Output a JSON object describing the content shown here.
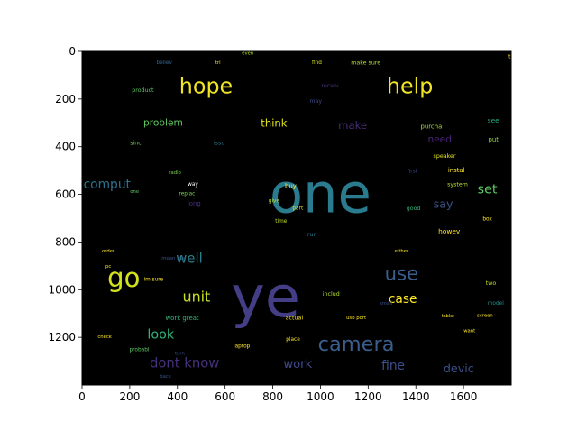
{
  "chart_data": {
    "type": "wordcloud",
    "background": "#000000",
    "xlim": [
      0,
      1800
    ],
    "ylim": [
      1400,
      0
    ],
    "x_ticks": [
      0,
      200,
      400,
      600,
      800,
      1000,
      1200,
      1400,
      1600
    ],
    "y_ticks": [
      0,
      200,
      400,
      600,
      800,
      1000,
      1200
    ],
    "x_tick_labels": [
      "0",
      "200",
      "400",
      "600",
      "800",
      "1000",
      "1200",
      "1400",
      "1600"
    ],
    "y_tick_labels": [
      "0",
      "200",
      "400",
      "600",
      "800",
      "1000",
      "1200"
    ],
    "words": [
      {
        "text": "one",
        "x": 1000,
        "y": 600,
        "size": 230,
        "color": "#2a7b8e"
      },
      {
        "text": "ye",
        "x": 770,
        "y": 1030,
        "size": 240,
        "color": "#433e85"
      },
      {
        "text": "hope",
        "x": 520,
        "y": 145,
        "size": 90,
        "color": "#f0e524"
      },
      {
        "text": "help",
        "x": 1375,
        "y": 145,
        "size": 90,
        "color": "#f0e524"
      },
      {
        "text": "camera",
        "x": 1150,
        "y": 1230,
        "size": 85,
        "color": "#3a5d8b"
      },
      {
        "text": "use",
        "x": 1340,
        "y": 930,
        "size": 80,
        "color": "#3a5d8b"
      },
      {
        "text": "dont know",
        "x": 430,
        "y": 1310,
        "size": 56,
        "color": "#46317e"
      },
      {
        "text": "fine",
        "x": 1305,
        "y": 1320,
        "size": 52,
        "color": "#3d4d8a"
      },
      {
        "text": "work",
        "x": 905,
        "y": 1315,
        "size": 50,
        "color": "#3e4a89"
      },
      {
        "text": "devic",
        "x": 1580,
        "y": 1330,
        "size": 48,
        "color": "#3b528b"
      },
      {
        "text": "unit",
        "x": 480,
        "y": 1030,
        "size": 60,
        "color": "#c8e020"
      },
      {
        "text": "case",
        "x": 1345,
        "y": 1040,
        "size": 52,
        "color": "#fde725"
      },
      {
        "text": "look",
        "x": 330,
        "y": 1190,
        "size": 54,
        "color": "#2eb37c"
      },
      {
        "text": "well",
        "x": 450,
        "y": 870,
        "size": 56,
        "color": "#26818e"
      },
      {
        "text": "go",
        "x": 175,
        "y": 950,
        "size": 110,
        "color": "#d2e21b"
      },
      {
        "text": "problem",
        "x": 340,
        "y": 300,
        "size": 40,
        "color": "#60ca60"
      },
      {
        "text": "think",
        "x": 805,
        "y": 300,
        "size": 44,
        "color": "#e2e418"
      },
      {
        "text": "make",
        "x": 1135,
        "y": 310,
        "size": 44,
        "color": "#472d7b"
      },
      {
        "text": "comput",
        "x": 105,
        "y": 560,
        "size": 52,
        "color": "#2c728e"
      },
      {
        "text": "say",
        "x": 1515,
        "y": 640,
        "size": 48,
        "color": "#3b528b"
      },
      {
        "text": "set",
        "x": 1700,
        "y": 580,
        "size": 54,
        "color": "#5ec962"
      },
      {
        "text": "need",
        "x": 1500,
        "y": 370,
        "size": 40,
        "color": "#482374"
      },
      {
        "text": "make sure",
        "x": 1190,
        "y": 50,
        "size": 24,
        "color": "#b5de2b"
      },
      {
        "text": "believ",
        "x": 345,
        "y": 50,
        "size": 22,
        "color": "#31688e"
      },
      {
        "text": "find",
        "x": 985,
        "y": 50,
        "size": 22,
        "color": "#d8e219"
      },
      {
        "text": "receiv",
        "x": 1040,
        "y": 145,
        "size": 24,
        "color": "#46327e"
      },
      {
        "text": "may",
        "x": 980,
        "y": 210,
        "size": 24,
        "color": "#3e4989"
      },
      {
        "text": "purcha",
        "x": 1465,
        "y": 315,
        "size": 26,
        "color": "#a2da37"
      },
      {
        "text": "see",
        "x": 1725,
        "y": 290,
        "size": 28,
        "color": "#29af7f"
      },
      {
        "text": "put",
        "x": 1725,
        "y": 370,
        "size": 26,
        "color": "#8fd744"
      },
      {
        "text": "speaker",
        "x": 1520,
        "y": 440,
        "size": 24,
        "color": "#e5e419"
      },
      {
        "text": "instal",
        "x": 1570,
        "y": 500,
        "size": 26,
        "color": "#fde725"
      },
      {
        "text": "system",
        "x": 1575,
        "y": 560,
        "size": 24,
        "color": "#b5de2b"
      },
      {
        "text": "good",
        "x": 1390,
        "y": 660,
        "size": 24,
        "color": "#35b779"
      },
      {
        "text": "howev",
        "x": 1540,
        "y": 755,
        "size": 28,
        "color": "#fde725"
      },
      {
        "text": "box",
        "x": 1700,
        "y": 705,
        "size": 22,
        "color": "#fde725"
      },
      {
        "text": "two",
        "x": 1715,
        "y": 975,
        "size": 24,
        "color": "#c2df23"
      },
      {
        "text": "model",
        "x": 1735,
        "y": 1060,
        "size": 22,
        "color": "#21918c"
      },
      {
        "text": "screen",
        "x": 1690,
        "y": 1110,
        "size": 20,
        "color": "#fde725"
      },
      {
        "text": "tv",
        "x": 1800,
        "y": 25,
        "size": 22,
        "color": "#fde725"
      },
      {
        "text": "buy",
        "x": 875,
        "y": 565,
        "size": 26,
        "color": "#fde725"
      },
      {
        "text": "give",
        "x": 805,
        "y": 630,
        "size": 22,
        "color": "#bddf26"
      },
      {
        "text": "part",
        "x": 905,
        "y": 660,
        "size": 22,
        "color": "#e5e419"
      },
      {
        "text": "time",
        "x": 835,
        "y": 715,
        "size": 22,
        "color": "#c0df25"
      },
      {
        "text": "run",
        "x": 965,
        "y": 770,
        "size": 24,
        "color": "#2a788e"
      },
      {
        "text": "first",
        "x": 1385,
        "y": 505,
        "size": 22,
        "color": "#3e4989"
      },
      {
        "text": "long",
        "x": 470,
        "y": 640,
        "size": 26,
        "color": "#46327e"
      },
      {
        "text": "way",
        "x": 465,
        "y": 560,
        "size": 22,
        "color": "#ffffff"
      },
      {
        "text": "one",
        "x": 220,
        "y": 590,
        "size": 20,
        "color": "#5ec962"
      },
      {
        "text": "mean size",
        "x": 385,
        "y": 870,
        "size": 20,
        "color": "#3b528b"
      },
      {
        "text": "im sure",
        "x": 300,
        "y": 960,
        "size": 22,
        "color": "#fde725"
      },
      {
        "text": "work great",
        "x": 420,
        "y": 1120,
        "size": 26,
        "color": "#35b779"
      },
      {
        "text": "actual",
        "x": 890,
        "y": 1120,
        "size": 24,
        "color": "#fde725"
      },
      {
        "text": "includ",
        "x": 1045,
        "y": 1020,
        "size": 24,
        "color": "#b5de2b"
      },
      {
        "text": "usb port",
        "x": 1150,
        "y": 1120,
        "size": 20,
        "color": "#fde725"
      },
      {
        "text": "laptop",
        "x": 670,
        "y": 1240,
        "size": 22,
        "color": "#fde725"
      },
      {
        "text": "place",
        "x": 885,
        "y": 1210,
        "size": 22,
        "color": "#fde725"
      },
      {
        "text": "probabl",
        "x": 240,
        "y": 1255,
        "size": 22,
        "color": "#5ec962"
      },
      {
        "text": "turn",
        "x": 410,
        "y": 1270,
        "size": 20,
        "color": "#3b528b"
      },
      {
        "text": "back",
        "x": 350,
        "y": 1365,
        "size": 20,
        "color": "#3b528b"
      },
      {
        "text": "check",
        "x": 95,
        "y": 1200,
        "size": 20,
        "color": "#fde725"
      },
      {
        "text": "sinc",
        "x": 225,
        "y": 385,
        "size": 24,
        "color": "#7ad151"
      },
      {
        "text": "issu",
        "x": 575,
        "y": 385,
        "size": 24,
        "color": "#2a788e"
      },
      {
        "text": "radio",
        "x": 390,
        "y": 510,
        "size": 20,
        "color": "#7ad151"
      },
      {
        "text": "replac",
        "x": 440,
        "y": 600,
        "size": 22,
        "color": "#7ad151"
      },
      {
        "text": "want",
        "x": 1625,
        "y": 1175,
        "size": 20,
        "color": "#fde725"
      },
      {
        "text": "tablet",
        "x": 1535,
        "y": 1115,
        "size": 18,
        "color": "#fde725"
      },
      {
        "text": "even",
        "x": 695,
        "y": 10,
        "size": 20,
        "color": "#b5de2b"
      },
      {
        "text": "tri",
        "x": 570,
        "y": 50,
        "size": 20,
        "color": "#fde725"
      },
      {
        "text": "either",
        "x": 1340,
        "y": 840,
        "size": 20,
        "color": "#fde725"
      },
      {
        "text": "order",
        "x": 110,
        "y": 840,
        "size": 20,
        "color": "#fde725"
      },
      {
        "text": "pc",
        "x": 110,
        "y": 905,
        "size": 20,
        "color": "#fde725"
      },
      {
        "text": "small",
        "x": 1275,
        "y": 1060,
        "size": 20,
        "color": "#3b528b"
      },
      {
        "text": "product",
        "x": 255,
        "y": 165,
        "size": 24,
        "color": "#5ec962"
      }
    ]
  }
}
